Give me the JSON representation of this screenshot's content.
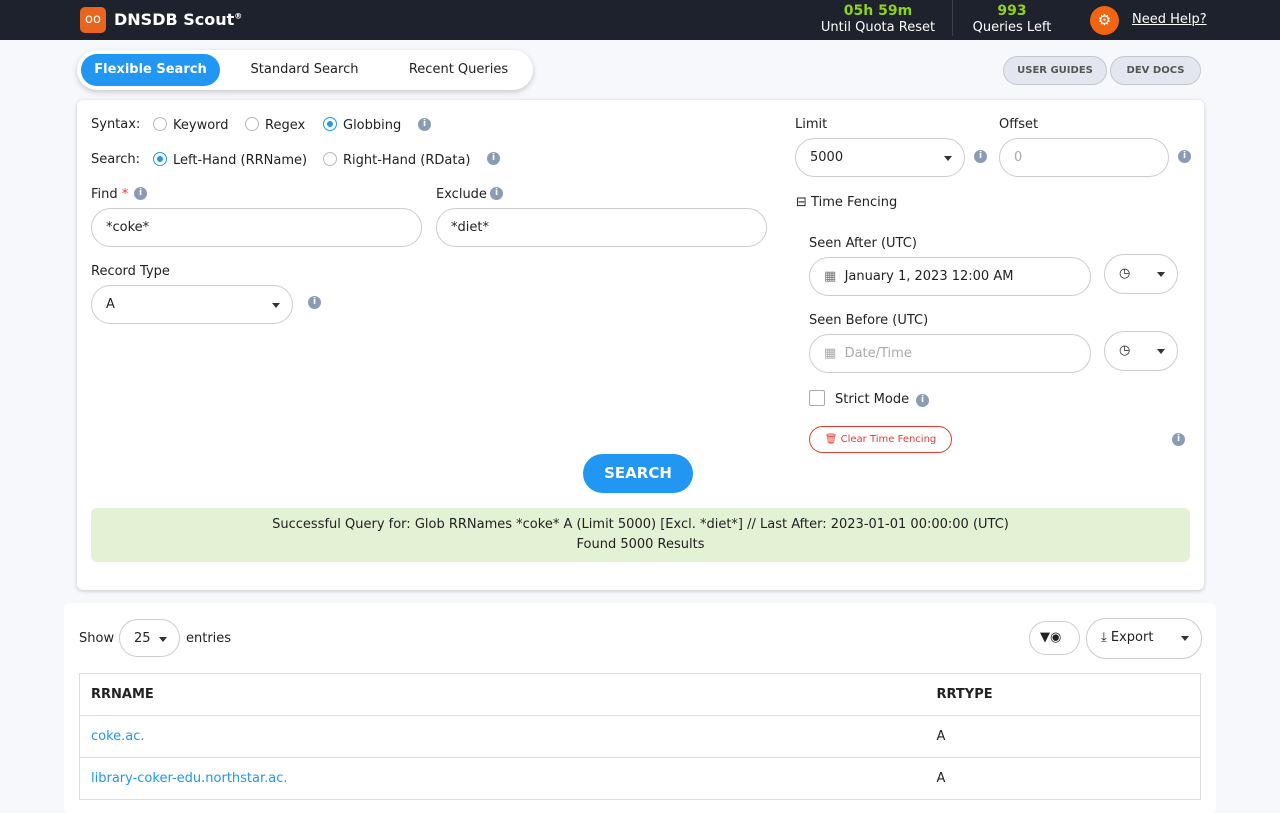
{
  "header": {
    "brand": "DNSDB Scout",
    "reg": "®",
    "quota_time": "05h 59m",
    "quota_label": "Until Quota Reset",
    "queries_count": "993",
    "queries_label": "Queries Left",
    "help": "Need Help?"
  },
  "tabs": [
    "Flexible Search",
    "Standard Search",
    "Recent Queries"
  ],
  "top_buttons": {
    "guides": "USER GUIDES",
    "docs": "DEV DOCS"
  },
  "form": {
    "syntax_label": "Syntax:",
    "syntax_options": [
      "Keyword",
      "Regex",
      "Globbing"
    ],
    "syntax_selected": "Globbing",
    "search_label": "Search:",
    "search_options": [
      "Left-Hand (RRName)",
      "Right-Hand (RData)"
    ],
    "search_selected": "Left-Hand (RRName)",
    "find_label": "Find",
    "required": "*",
    "find_value": "*coke*",
    "exclude_label": "Exclude",
    "exclude_value": "*diet*",
    "record_type_label": "Record Type",
    "record_type_value": "A",
    "limit_label": "Limit",
    "limit_value": "5000",
    "offset_label": "Offset",
    "offset_placeholder": "0",
    "time_fencing_label": "Time Fencing",
    "time_fencing_toggle": "⊟",
    "seen_after_label": "Seen After (UTC)",
    "seen_after_value": "January 1, 2023 12:00 AM",
    "seen_before_label": "Seen Before (UTC)",
    "seen_before_placeholder": "Date/Time",
    "strict_mode_label": "Strict Mode",
    "clear_time_fencing": "Clear Time Fencing",
    "search_button": "SEARCH"
  },
  "status": {
    "line1": "Successful Query for: Glob RRNames *coke* A (Limit 5000) [Excl. *diet*] // Last After: 2023-01-01 00:00:00 (UTC)",
    "line2": "Found 5000 Results"
  },
  "results": {
    "show": "Show",
    "entries_value": "25",
    "entries": "entries",
    "export": "Export",
    "columns": [
      "RRNAME",
      "RRTYPE"
    ],
    "rows": [
      {
        "rrname": "coke.ac.",
        "rrtype": "A"
      },
      {
        "rrname": "library-coker-edu.northstar.ac.",
        "rrtype": "A"
      }
    ]
  },
  "colors": {
    "accent": "#2196f3",
    "topbar": "#1e222d",
    "orange": "#f06511",
    "green": "#8fd11c"
  }
}
